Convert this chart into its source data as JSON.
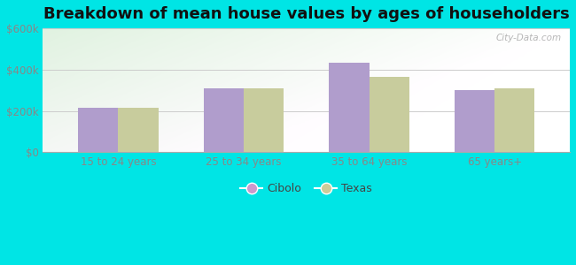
{
  "title": "Breakdown of mean house values by ages of householders",
  "categories": [
    "15 to 24 years",
    "25 to 34 years",
    "35 to 64 years",
    "65 years+"
  ],
  "cibolo_values": [
    215000,
    310000,
    435000,
    300000
  ],
  "texas_values": [
    215000,
    308000,
    365000,
    310000
  ],
  "bar_color_cibolo": "#b09dcc",
  "bar_color_texas": "#c8cc9d",
  "background_color": "#00e5e5",
  "ylim": [
    0,
    600000
  ],
  "yticks": [
    0,
    200000,
    400000,
    600000
  ],
  "ytick_labels": [
    "$0",
    "$200k",
    "$400k",
    "$600k"
  ],
  "legend_cibolo": "Cibolo",
  "legend_texas": "Texas",
  "legend_cibolo_color": "#cc99cc",
  "legend_texas_color": "#cccc99",
  "watermark": "City-Data.com",
  "title_fontsize": 13,
  "bar_width": 0.32,
  "grid_color": "#cccccc",
  "tick_color": "#888888",
  "tick_fontsize": 8.5
}
